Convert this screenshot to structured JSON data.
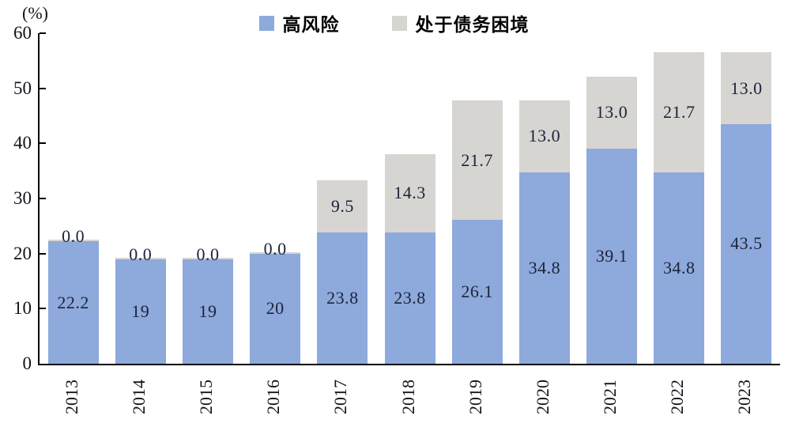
{
  "legend": {
    "items": [
      {
        "label": "高风险",
        "color": "#8EA9DB"
      },
      {
        "label": "处于债务困境",
        "color": "#D7D5D2"
      }
    ]
  },
  "axis": {
    "unit_label": "(%)"
  },
  "chart_data": {
    "type": "bar",
    "stacked": true,
    "title": "",
    "xlabel": "",
    "ylabel": "(%)",
    "categories": [
      "2013",
      "2014",
      "2015",
      "2016",
      "2017",
      "2018",
      "2019",
      "2020",
      "2021",
      "2022",
      "2023"
    ],
    "series": [
      {
        "name": "高风险",
        "color": "#8EA9DB",
        "values": [
          22.2,
          19,
          19,
          20,
          23.8,
          23.8,
          26.1,
          34.8,
          39.1,
          34.8,
          43.5
        ],
        "labels": [
          "22.2",
          "19",
          "19",
          "20",
          "23.8",
          "23.8",
          "26.1",
          "34.8",
          "39.1",
          "34.8",
          "43.5"
        ]
      },
      {
        "name": "处于债务困境",
        "color": "#D7D5D2",
        "values": [
          0,
          0,
          0,
          0,
          9.5,
          14.3,
          21.7,
          13.0,
          13.0,
          21.7,
          13.0
        ],
        "labels": [
          "0.0",
          "0.0",
          "0.0",
          "0.0",
          "9.5",
          "14.3",
          "21.7",
          "13.0",
          "13.0",
          "21.7",
          "13.0"
        ]
      }
    ],
    "ylim": [
      0,
      60
    ],
    "yticks": [
      0,
      10,
      20,
      30,
      40,
      50,
      60
    ],
    "grid": false,
    "legend_position": "top-center",
    "label_color": "#1c2439",
    "axis_color": "#000000"
  }
}
